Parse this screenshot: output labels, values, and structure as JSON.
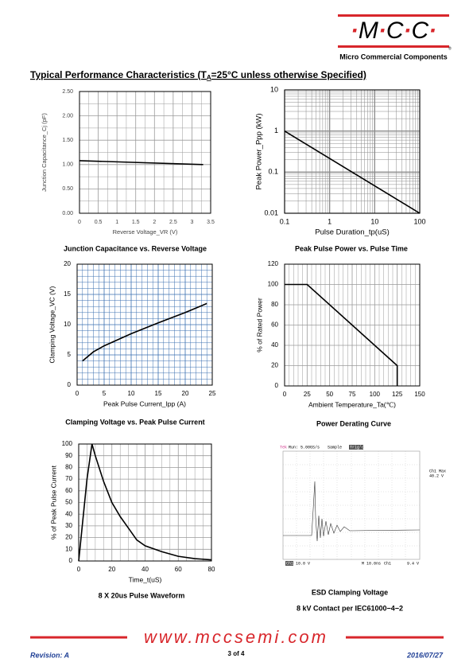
{
  "header": {
    "logo": "·M·C·C·",
    "registered": "®",
    "company": "Micro Commercial Components"
  },
  "heading": {
    "prefix": "Typical Performance Characteristics (T",
    "subscript": "A",
    "suffix": "=25°C unless otherwise Specified)"
  },
  "chart_data": [
    {
      "type": "line",
      "title": "Junction Capacitance vs. Reverse Voltage",
      "x_label": "Reverse Voltage_VR (V)",
      "y_label": "Junction Capacitance_Cj (pF)",
      "x": [
        0,
        3.3
      ],
      "values": [
        1.08,
        1.0
      ],
      "color": "#000000",
      "xlim": [
        0,
        3.5
      ],
      "xticks": [
        0,
        0.5,
        1,
        1.5,
        2,
        2.5,
        3,
        3.5
      ],
      "ylim": [
        0,
        2.5
      ],
      "yticks": [
        {
          "value": 0,
          "label": "0.00"
        },
        {
          "value": 0.5,
          "label": "0.50"
        },
        {
          "value": 1,
          "label": "1.00"
        },
        {
          "value": 1.5,
          "label": "1.50"
        },
        {
          "value": 2,
          "label": "2.00"
        },
        {
          "value": 2.5,
          "label": "2.50"
        }
      ],
      "grid": true,
      "grid_color": "#9a9a9a"
    },
    {
      "type": "line",
      "title": "Peak Pulse Power vs. Pulse Time",
      "x_label": "Pulse  Duration_tp(uS)",
      "y_label": "Peak  Power_Ppp (kW)",
      "x": [
        0.1,
        100
      ],
      "values": [
        1,
        0.01
      ],
      "color": "#000000",
      "log_x": true,
      "log_y": true,
      "xlim": [
        0.1,
        100
      ],
      "xticks": [
        0.1,
        1,
        10,
        100
      ],
      "ylim": [
        0.01,
        10
      ],
      "yticks": [
        0.01,
        0.1,
        1,
        10
      ],
      "grid": true,
      "grid_color": "#8a8a8a"
    },
    {
      "type": "line",
      "title": "Clamping Voltage vs. Peak Pulse Current",
      "x_label": "Peak Pulse Current_Ipp  (A)",
      "y_label": "Clamping Voltage_VC (V)",
      "x": [
        1,
        3,
        5,
        10,
        15,
        20,
        24
      ],
      "values": [
        4,
        5.5,
        6.5,
        8.5,
        10.3,
        12,
        13.5
      ],
      "color": "#000000",
      "xlim": [
        0,
        25
      ],
      "xticks": [
        0,
        5,
        10,
        15,
        20,
        25
      ],
      "ylim": [
        0,
        20
      ],
      "yticks": [
        0,
        5,
        10,
        15,
        20
      ],
      "grid": true,
      "grid_color": "#3a6fb0"
    },
    {
      "type": "line",
      "title": "Power Derating Curve",
      "x_label": "Ambient  Temperature_Ta(℃)",
      "y_label": "% of Rated Power",
      "x": [
        0,
        25,
        125,
        125
      ],
      "values": [
        100,
        100,
        20,
        0
      ],
      "color": "#000000",
      "xlim": [
        0,
        150
      ],
      "xticks": [
        0,
        25,
        50,
        75,
        100,
        125,
        150
      ],
      "ylim": [
        0,
        120
      ],
      "yticks": [
        0,
        20,
        40,
        60,
        80,
        100,
        120
      ],
      "grid": true,
      "grid_color": "#9a9a9a"
    },
    {
      "type": "line",
      "title": "8 X 20us Pulse Waveform",
      "x_label": "Time_t(uS)",
      "y_label": "% of Peak Pulse Current",
      "x": [
        0,
        5,
        8,
        10,
        15,
        20,
        25,
        30,
        35,
        40,
        50,
        60,
        70,
        80
      ],
      "values": [
        0,
        70,
        100,
        90,
        68,
        50,
        38,
        28,
        18,
        13,
        8,
        4,
        2,
        1
      ],
      "color": "#000000",
      "xlim": [
        0,
        80
      ],
      "xticks": [
        0,
        20,
        40,
        60,
        80
      ],
      "ylim": [
        0,
        100
      ],
      "yticks": [
        0,
        10,
        20,
        30,
        40,
        50,
        60,
        70,
        80,
        90,
        100
      ],
      "grid": true,
      "grid_color": "#9a9a9a"
    }
  ],
  "esd": {
    "scope": {
      "brand": "Tek",
      "run": "Run: 5.00GS/s",
      "mode": "Sample",
      "trig": "Trig'd",
      "max_label": "Ch1 Max",
      "max_value": "40.2 V",
      "channel": "Ch1",
      "volts": "10.0 V",
      "time": "M 10.0ns",
      "trig_ch": "Ch1",
      "trig_level": "9.4 V"
    },
    "caption": "ESD Clamping Voltage",
    "subcaption": "8 kV Contact per IEC61000−4−2"
  },
  "footer": {
    "url": "www.mccsemi.com",
    "revision": "Revision: A",
    "page": "3 of 4",
    "date": "2016/07/27"
  }
}
